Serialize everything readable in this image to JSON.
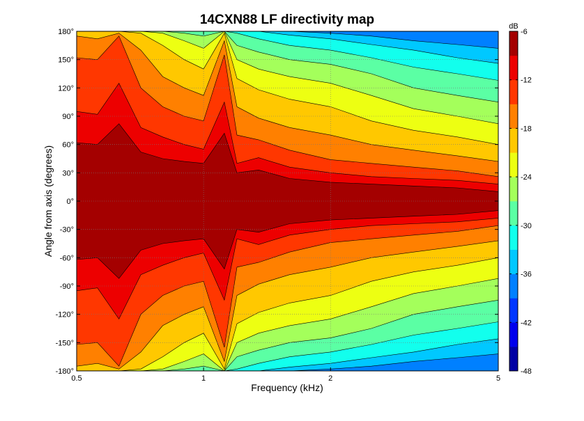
{
  "chart_data": {
    "type": "heatmap",
    "title": "14CXN88 LF directivity map",
    "xlabel": "Frequency (kHz)",
    "ylabel": "Angle from axis (degrees)",
    "x_scale": "log",
    "xlim": [
      0.5,
      5
    ],
    "ylim": [
      -180,
      180
    ],
    "x_ticks": [
      {
        "value": 0.5,
        "label": "0.5"
      },
      {
        "value": 1,
        "label": "1"
      },
      {
        "value": 2,
        "label": "2"
      },
      {
        "value": 5,
        "label": "5"
      }
    ],
    "y_ticks": [
      {
        "value": 180,
        "label": "180°"
      },
      {
        "value": 150,
        "label": "150°"
      },
      {
        "value": 120,
        "label": "120°"
      },
      {
        "value": 90,
        "label": "90°"
      },
      {
        "value": 60,
        "label": "60°"
      },
      {
        "value": 30,
        "label": "30°"
      },
      {
        "value": 0,
        "label": "0°"
      },
      {
        "value": -30,
        "label": "-30°"
      },
      {
        "value": -60,
        "label": "-60°"
      },
      {
        "value": -90,
        "label": "-90°"
      },
      {
        "value": -120,
        "label": "-120°"
      },
      {
        "value": -150,
        "label": "-150°"
      },
      {
        "value": -180,
        "label": "-180°"
      }
    ],
    "grid": true,
    "colorbar": {
      "unit": "dB",
      "range": [
        -48,
        -6
      ],
      "step": 3,
      "colormap": "jet",
      "tick_labels": [
        {
          "value": -6,
          "label": "-6"
        },
        {
          "value": -12,
          "label": "-12"
        },
        {
          "value": -18,
          "label": "-18"
        },
        {
          "value": -24,
          "label": "-24"
        },
        {
          "value": -30,
          "label": "-30"
        },
        {
          "value": -36,
          "label": "-36"
        },
        {
          "value": -42,
          "label": "-42"
        },
        {
          "value": -48,
          "label": "-48"
        }
      ]
    },
    "beamwidth_contours_db": {
      "frequencies_khz": [
        0.5,
        0.56,
        0.63,
        0.71,
        0.8,
        0.9,
        1.0,
        1.12,
        1.2,
        1.35,
        1.6,
        2.0,
        2.5,
        3.15,
        4.0,
        5.0
      ],
      "-9": [
        62,
        60,
        82,
        52,
        45,
        42,
        40,
        72,
        30,
        33,
        24,
        20,
        18,
        16,
        14,
        10
      ],
      "-12": [
        95,
        92,
        125,
        78,
        68,
        60,
        55,
        105,
        40,
        46,
        36,
        30,
        26,
        24,
        22,
        18
      ],
      "-15": [
        152,
        150,
        175,
        120,
        100,
        90,
        85,
        155,
        70,
        65,
        54,
        44,
        40,
        36,
        32,
        26
      ],
      "-18": [
        175,
        172,
        178,
        160,
        132,
        120,
        112,
        170,
        100,
        88,
        78,
        70,
        60,
        54,
        48,
        42
      ],
      "-21": [
        180,
        180,
        180,
        178,
        165,
        150,
        140,
        178,
        130,
        118,
        108,
        100,
        85,
        75,
        68,
        60
      ],
      "-24": [
        180,
        180,
        180,
        180,
        178,
        170,
        162,
        180,
        150,
        140,
        132,
        125,
        112,
        98,
        90,
        82
      ],
      "-27": [
        180,
        180,
        180,
        180,
        180,
        178,
        175,
        180,
        165,
        158,
        150,
        145,
        135,
        120,
        112,
        105
      ],
      "-30": [
        180,
        180,
        180,
        180,
        180,
        180,
        180,
        180,
        178,
        172,
        165,
        160,
        152,
        142,
        135,
        128
      ],
      "-33": [
        180,
        180,
        180,
        180,
        180,
        180,
        180,
        180,
        180,
        180,
        176,
        172,
        166,
        160,
        152,
        146
      ],
      "-36": [
        180,
        180,
        180,
        180,
        180,
        180,
        180,
        180,
        180,
        180,
        180,
        178,
        175,
        170,
        166,
        162
      ]
    }
  }
}
